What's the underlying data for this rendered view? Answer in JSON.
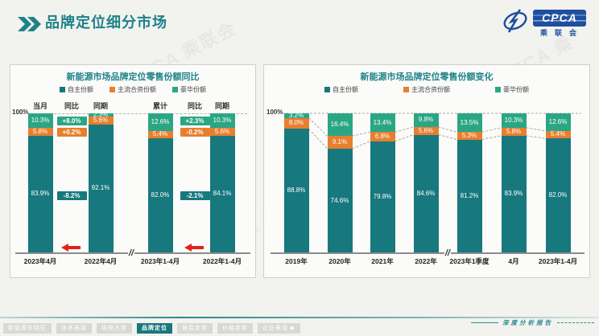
{
  "header": {
    "title": "品牌定位细分市场"
  },
  "logo": {
    "cpca": "CPCA",
    "sub": "乘联会"
  },
  "watermark": "CPCA 乘联会",
  "axis_top_label": "100%",
  "footer": {
    "report_label": "深度分析报告",
    "tabs": [
      {
        "label": "新能源车特征",
        "active": false
      },
      {
        "label": "技术表现",
        "active": false
      },
      {
        "label": "纯电大势",
        "active": false
      },
      {
        "label": "品牌定位",
        "active": true
      },
      {
        "label": "插混走势",
        "active": false
      },
      {
        "label": "价格走势",
        "active": false
      },
      {
        "label": "企业表现 ▶",
        "active": false
      }
    ]
  },
  "chart_data": [
    {
      "type": "bar",
      "stacked": true,
      "title": "新能源市场品牌定位零售份额同比",
      "ylim": [
        0,
        100
      ],
      "axis_top_label": "100%",
      "grid": "top-dashed-only",
      "legend_position": "top",
      "col_headers": [
        "当月",
        "同比",
        "同期",
        "累计",
        "同比",
        "同期"
      ],
      "categories": [
        "2023年4月",
        "2022年4月",
        "2023年1-4月",
        "2022年1-4月"
      ],
      "series": [
        {
          "name": "自主份额",
          "key": "own",
          "color": "#17787E",
          "values": [
            83.9,
            92.1,
            82.0,
            84.1
          ]
        },
        {
          "name": "主流合资份额",
          "key": "joint",
          "color": "#E87F2E",
          "values": [
            5.8,
            5.6,
            5.4,
            5.6
          ]
        },
        {
          "name": "豪华份额",
          "key": "lux",
          "color": "#2BA684",
          "values": [
            10.3,
            2.3,
            12.6,
            10.3
          ]
        }
      ],
      "yoy_chips": [
        {
          "lux": "+8.0%",
          "joint": "+0.2%",
          "own": "-8.2%"
        },
        {
          "lux": "+2.3%",
          "joint": "-0.2%",
          "own": "-2.1%"
        }
      ]
    },
    {
      "type": "bar",
      "stacked": true,
      "title": "新能源市场品牌定位零售份额变化",
      "ylim": [
        0,
        100
      ],
      "axis_top_label": "100%",
      "grid": "top-dashed-only",
      "legend_position": "top",
      "connectors": "dashed-between-segment-boundaries",
      "categories": [
        "2019年",
        "2020年",
        "2021年",
        "2022年",
        "2023年1季度",
        "4月",
        "2023年1-4月"
      ],
      "series": [
        {
          "name": "自主份额",
          "key": "own",
          "color": "#17787E",
          "values": [
            88.8,
            74.6,
            79.8,
            84.6,
            81.2,
            83.9,
            82.0
          ]
        },
        {
          "name": "主流合资份额",
          "key": "joint",
          "color": "#E87F2E",
          "values": [
            8.0,
            9.1,
            6.8,
            5.6,
            5.3,
            5.8,
            5.4
          ]
        },
        {
          "name": "豪华份额",
          "key": "lux",
          "color": "#2BA684",
          "values": [
            3.2,
            16.4,
            13.4,
            9.8,
            13.5,
            10.3,
            12.6
          ]
        }
      ]
    }
  ]
}
